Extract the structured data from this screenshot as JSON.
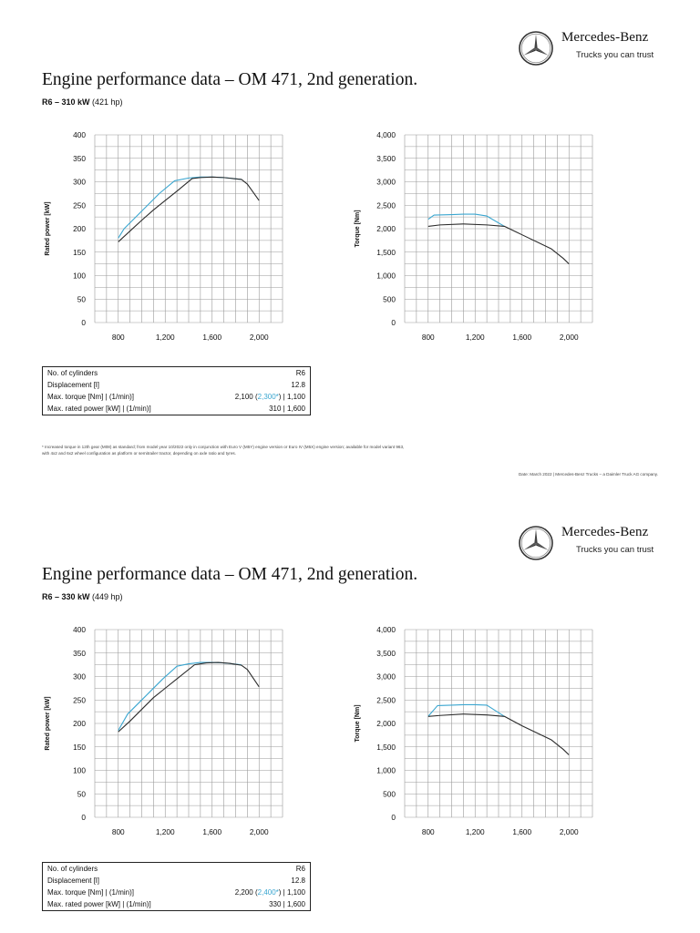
{
  "brand": {
    "name": "Mercedes-Benz",
    "tagline": "Trucks you can trust"
  },
  "pages": [
    {
      "title": "Engine performance data – OM 471, 2nd generation.",
      "subtitle_bold": "R6 – 310 kW",
      "subtitle_rest": " (421 hp)",
      "specs": [
        {
          "label": "No. of cylinders",
          "value": "R6"
        },
        {
          "label": "Displacement [l]",
          "value": "12.8"
        },
        {
          "label": "Max. torque [Nm] | (1/min)]",
          "value_pre": "2,100 (",
          "value_hl": "2,300*",
          "value_post": ") | 1,100"
        },
        {
          "label": "Max. rated power [kW] | (1/min)]",
          "value": "310 | 1,600"
        }
      ],
      "footnote_line1": "* Increased torque in 12th gear (M08) as standard; from model year 10/2022 only in conjunction with Euro V (M5Y) engine version or Euro IV (M5X) engine version; available for model variant 963,",
      "footnote_line2": "with 4x2 and 6x2 wheel configuration as platform or semitrailer tractor, depending on axle ratio and tyres.",
      "date_note": "Date: March 2022 | Mercedes-Benz Trucks – a Daimler Truck AG company."
    },
    {
      "title": "Engine performance data – OM 471, 2nd generation.",
      "subtitle_bold": "R6 – 330 kW",
      "subtitle_rest": " (449 hp)",
      "specs": [
        {
          "label": "No. of cylinders",
          "value": "R6"
        },
        {
          "label": "Displacement [l]",
          "value": "12.8"
        },
        {
          "label": "Max. torque [Nm] | (1/min)]",
          "value_pre": "2,200 (",
          "value_hl": "2,400*",
          "value_post": ") | 1,100"
        },
        {
          "label": "Max. rated power [kW] | (1/min)]",
          "value": "330 | 1,600"
        }
      ]
    }
  ],
  "chart_data": [
    {
      "type": "line",
      "ylabel": "Rated power [kW]",
      "x_ticks": [
        800,
        1200,
        1600,
        2000
      ],
      "y_ticks": [
        0,
        50,
        100,
        150,
        200,
        250,
        300,
        350,
        400
      ],
      "xlim": [
        600,
        2200
      ],
      "ylim": [
        0,
        400
      ],
      "grid": true,
      "series": [
        {
          "color": "#3aa6d0",
          "x": [
            800,
            850,
            950,
            1050,
            1150,
            1280,
            1400,
            1500,
            1600,
            1700,
            1850
          ],
          "y": [
            180,
            200,
            225,
            250,
            275,
            302,
            308,
            310,
            310,
            309,
            305
          ]
        },
        {
          "color": "#2b2b2b",
          "x": [
            800,
            900,
            1000,
            1100,
            1200,
            1300,
            1430,
            1500,
            1600,
            1700,
            1850,
            1900,
            2000
          ],
          "y": [
            172,
            195,
            218,
            240,
            260,
            280,
            307,
            309,
            310,
            309,
            305,
            295,
            260
          ]
        }
      ]
    },
    {
      "type": "line",
      "ylabel": "Torque [Nm]",
      "x_ticks": [
        800,
        1200,
        1600,
        2000
      ],
      "y_ticks": [
        0,
        500,
        1000,
        1500,
        2000,
        2500,
        3000,
        3500,
        4000
      ],
      "xlim": [
        600,
        2200
      ],
      "ylim": [
        0,
        4000
      ],
      "grid": true,
      "series": [
        {
          "color": "#3aa6d0",
          "x": [
            800,
            850,
            1000,
            1100,
            1200,
            1300,
            1450
          ],
          "y": [
            2200,
            2290,
            2300,
            2310,
            2310,
            2270,
            2050
          ]
        },
        {
          "color": "#2b2b2b",
          "x": [
            800,
            900,
            1100,
            1300,
            1450,
            1600,
            1850,
            1950,
            2000
          ],
          "y": [
            2050,
            2080,
            2100,
            2080,
            2050,
            1870,
            1570,
            1370,
            1250
          ]
        }
      ]
    },
    {
      "type": "line",
      "ylabel": "Rated power [kW]",
      "x_ticks": [
        800,
        1200,
        1600,
        2000
      ],
      "y_ticks": [
        0,
        50,
        100,
        150,
        200,
        250,
        300,
        350,
        400
      ],
      "xlim": [
        600,
        2200
      ],
      "ylim": [
        0,
        400
      ],
      "grid": true,
      "series": [
        {
          "color": "#3aa6d0",
          "x": [
            800,
            880,
            980,
            1080,
            1180,
            1300,
            1400,
            1500,
            1600,
            1700,
            1850
          ],
          "y": [
            185,
            220,
            245,
            270,
            295,
            322,
            327,
            330,
            330,
            329,
            325
          ]
        },
        {
          "color": "#2b2b2b",
          "x": [
            800,
            900,
            1000,
            1100,
            1200,
            1300,
            1450,
            1550,
            1650,
            1750,
            1850,
            1900,
            2000
          ],
          "y": [
            182,
            205,
            230,
            255,
            275,
            295,
            325,
            329,
            330,
            328,
            324,
            315,
            278
          ]
        }
      ]
    },
    {
      "type": "line",
      "ylabel": "Torque [Nm]",
      "x_ticks": [
        800,
        1200,
        1600,
        2000
      ],
      "y_ticks": [
        0,
        500,
        1000,
        1500,
        2000,
        2500,
        3000,
        3500,
        4000
      ],
      "xlim": [
        600,
        2200
      ],
      "ylim": [
        0,
        4000
      ],
      "grid": true,
      "series": [
        {
          "color": "#3aa6d0",
          "x": [
            800,
            880,
            1000,
            1100,
            1200,
            1300,
            1450
          ],
          "y": [
            2150,
            2380,
            2390,
            2400,
            2400,
            2390,
            2150
          ]
        },
        {
          "color": "#2b2b2b",
          "x": [
            800,
            900,
            1100,
            1300,
            1450,
            1600,
            1850,
            1950,
            2000
          ],
          "y": [
            2150,
            2170,
            2200,
            2180,
            2150,
            1950,
            1650,
            1450,
            1330
          ]
        }
      ]
    }
  ]
}
